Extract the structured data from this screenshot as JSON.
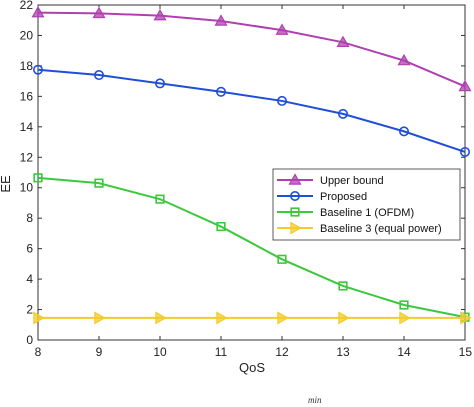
{
  "chart_data": {
    "type": "line",
    "xlabel": "QoS",
    "ylabel": "EE",
    "xlim": [
      8,
      15
    ],
    "ylim": [
      0,
      22
    ],
    "x": [
      8,
      9,
      10,
      11,
      12,
      13,
      14,
      15
    ],
    "xticks": [
      "8",
      "9",
      "10",
      "11",
      "12",
      "13",
      "14",
      "15"
    ],
    "yticks": [
      "0",
      "2",
      "4",
      "6",
      "8",
      "10",
      "12",
      "14",
      "16",
      "18",
      "20",
      "22"
    ],
    "grid": false,
    "legend_position": "center-right",
    "series": [
      {
        "name": "Upper bound",
        "color": "#b040b0",
        "marker": "triangle-up",
        "values": [
          21.5,
          21.45,
          21.3,
          20.95,
          20.35,
          19.55,
          18.35,
          16.65
        ]
      },
      {
        "name": "Proposed",
        "color": "#1f4ed8",
        "marker": "circle",
        "values": [
          17.75,
          17.4,
          16.85,
          16.3,
          15.7,
          14.85,
          13.7,
          12.35
        ]
      },
      {
        "name": "Baseline 1 (OFDM)",
        "color": "#3cc83c",
        "marker": "square",
        "values": [
          10.65,
          10.3,
          9.25,
          7.45,
          5.3,
          3.55,
          2.3,
          1.5
        ]
      },
      {
        "name": "Baseline 3 (equal power)",
        "color": "#f2cc2a",
        "marker": "triangle-right",
        "values": [
          1.45,
          1.45,
          1.45,
          1.45,
          1.45,
          1.45,
          1.45,
          1.45
        ]
      }
    ]
  },
  "footer_text": "min"
}
